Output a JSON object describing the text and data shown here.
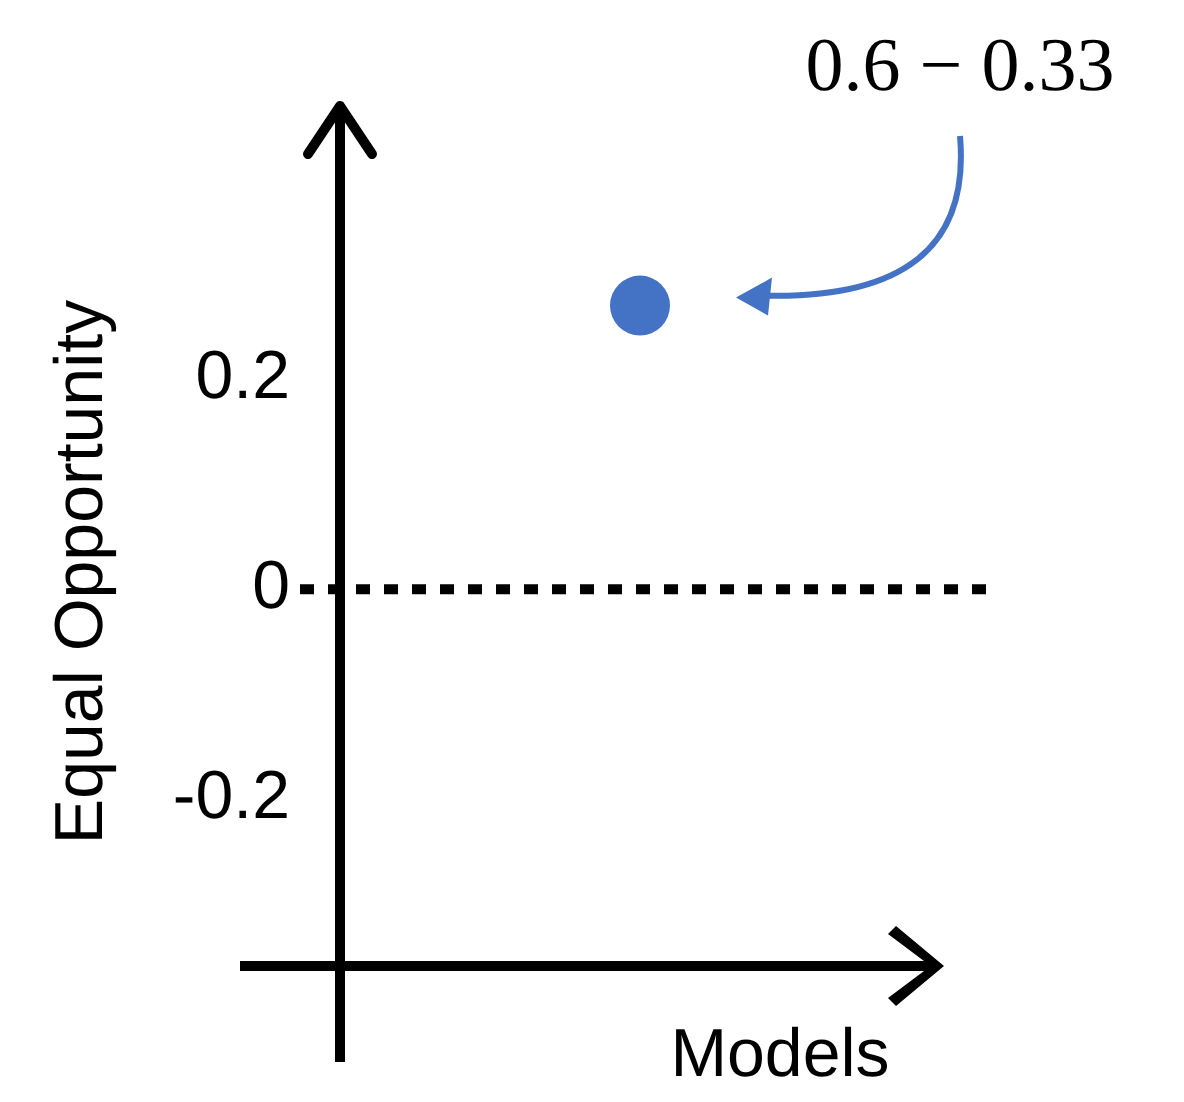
{
  "chart_data": {
    "type": "scatter",
    "xlabel": "Models",
    "ylabel": "Equal Opportunity",
    "categories": [
      null
    ],
    "series": [
      {
        "color": "#4472c4",
        "values": [
          0.27
        ]
      }
    ],
    "marker": "circle",
    "ylim": [
      -0.45,
      0.46
    ],
    "yticks": [
      -0.2,
      0,
      0.2
    ],
    "ref_lines": [
      {
        "axis": "y",
        "value": 0,
        "line_style": "dotted",
        "color": "#000000"
      }
    ],
    "annotations": [
      "0.6 − 0.33"
    ]
  }
}
